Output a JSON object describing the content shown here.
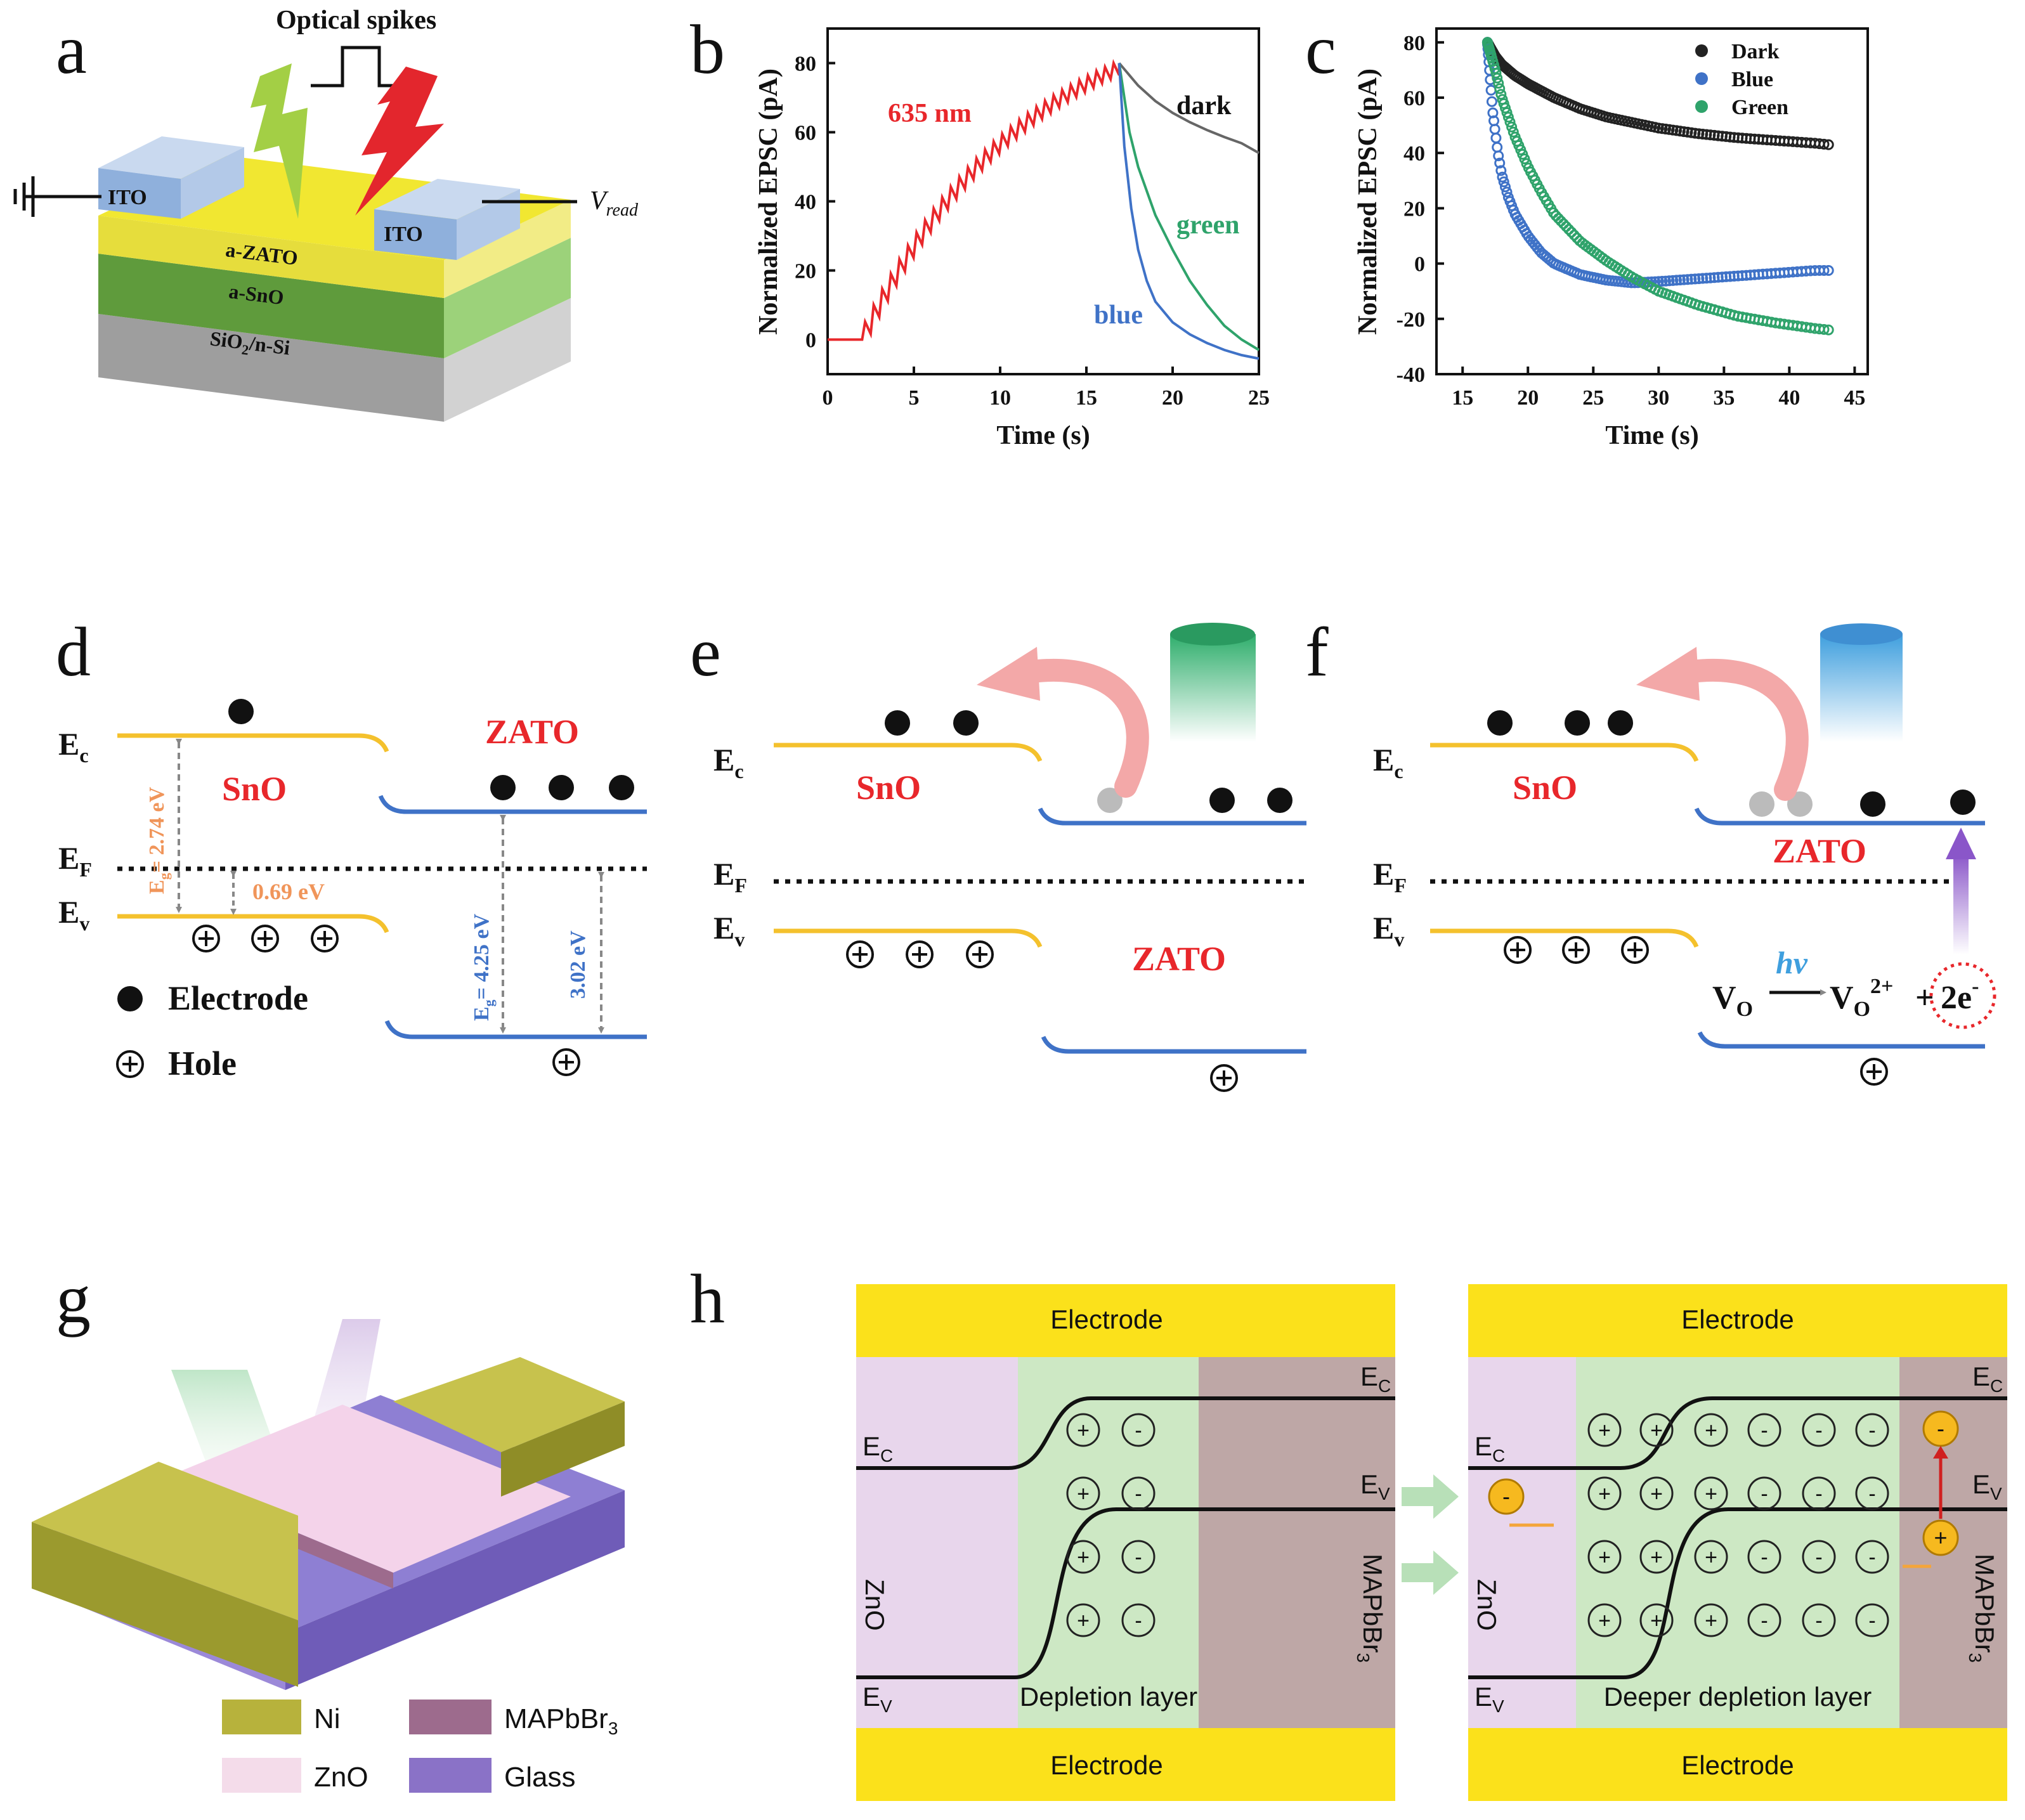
{
  "panel_labels": {
    "a": "a",
    "b": "b",
    "c": "c",
    "d": "d",
    "e": "e",
    "f": "f",
    "g": "g",
    "h": "h"
  },
  "colors": {
    "red": "#e8272b",
    "blue": "#3f72c7",
    "green": "#2fa36b",
    "black": "#222222",
    "gold": "#f4c12d",
    "band_blue": "#3f72c7",
    "ito": "#a9c3e6",
    "zato": "#eae24a",
    "sno": "#6aa546",
    "sio2": "#9a9a9a",
    "electrode_yellow": "#fbe11b",
    "zno_bg": "#e8d6ec",
    "depletion_bg": "#cde8c4",
    "mapbbr_bg": "#bea7a6",
    "ni": "#b7b23c",
    "glass": "#8a72c7",
    "zno_legend": "#f4dcea"
  },
  "panel_a": {
    "optical_spikes": "Optical spikes",
    "ito_left": "ITO",
    "ito_right": "ITO",
    "v_read": "V",
    "v_read_sub": "read",
    "layer_zato": "a-ZATO",
    "layer_sno": "a-SnO",
    "layer_substrate": "SiO",
    "layer_substrate_sub": "2",
    "layer_substrate_rest": "/n-Si",
    "icons": [
      "ground-icon",
      "green-lightning-icon",
      "red-lightning-icon",
      "pulse-icon"
    ]
  },
  "chart_data": [
    {
      "type": "line",
      "panel": "b",
      "xlabel": "Time (s)",
      "ylabel": "Normalized EPSC (pA)",
      "xlim": [
        0,
        25
      ],
      "ylim": [
        -10,
        90
      ],
      "xticks": [
        0,
        5,
        10,
        15,
        20,
        25
      ],
      "yticks": [
        0,
        20,
        40,
        60,
        80
      ],
      "annotations": [
        "635 nm",
        "dark",
        "green",
        "blue"
      ],
      "series": [
        {
          "name": "635 nm",
          "color": "#e8272b",
          "stimulus": "pulsed",
          "start": 2.0,
          "end": 16.9,
          "pulses": 30,
          "peak": 80,
          "rise_tau": 9.5
        },
        {
          "name": "dark",
          "color": "#666666",
          "x": [
            16.9,
            18,
            19,
            20,
            21,
            22,
            23,
            24,
            25
          ],
          "y": [
            80,
            73.5,
            69.0,
            65.6,
            62.9,
            60.6,
            58.6,
            56.8,
            54.0
          ]
        },
        {
          "name": "green",
          "color": "#2fa36b",
          "x": [
            16.9,
            17.5,
            18,
            19,
            20,
            21,
            22,
            23,
            24,
            25
          ],
          "y": [
            80,
            60,
            50,
            36,
            26,
            17,
            10,
            4,
            0,
            -3
          ]
        },
        {
          "name": "blue",
          "color": "#3f72c7",
          "x": [
            16.9,
            17.2,
            17.6,
            18,
            18.5,
            19,
            20,
            21,
            22,
            23,
            24,
            25
          ],
          "y": [
            80,
            56,
            38,
            26,
            17,
            11,
            5,
            1.5,
            -1,
            -3,
            -4.5,
            -5.5
          ]
        }
      ]
    },
    {
      "type": "scatter",
      "panel": "c",
      "xlabel": "Time (s)",
      "ylabel": "Normalized EPSC (pA)",
      "xlim": [
        13,
        46
      ],
      "ylim": [
        -40,
        85
      ],
      "xticks": [
        15,
        20,
        25,
        30,
        35,
        40,
        45
      ],
      "yticks": [
        -40,
        -20,
        0,
        20,
        40,
        60,
        80
      ],
      "legend_position": "top-right",
      "legend": [
        "Dark",
        "Blue",
        "Green"
      ],
      "series": [
        {
          "name": "Dark",
          "color": "#222222",
          "x": [
            16.9,
            17.5,
            18,
            19,
            20,
            22,
            24,
            26,
            28,
            30,
            33,
            36,
            39,
            42,
            43
          ],
          "y": [
            80,
            75,
            72,
            68,
            65,
            60,
            56,
            53,
            51,
            49,
            47,
            45.5,
            44.5,
            43.5,
            43
          ]
        },
        {
          "name": "Blue",
          "color": "#3f72c7",
          "x": [
            16.9,
            17.3,
            17.7,
            18,
            18.5,
            19,
            20,
            21,
            22,
            24,
            26,
            28,
            30,
            33,
            36,
            39,
            42,
            43
          ],
          "y": [
            80,
            55,
            40,
            32,
            24,
            18,
            10,
            4,
            0,
            -4,
            -6,
            -7,
            -6.5,
            -5.5,
            -4.5,
            -3.5,
            -2.5,
            -2.5
          ]
        },
        {
          "name": "Green",
          "color": "#2fa36b",
          "x": [
            16.9,
            17.5,
            18,
            19,
            20,
            21,
            22,
            24,
            26,
            28,
            30,
            33,
            36,
            39,
            42,
            43
          ],
          "y": [
            80,
            70,
            60,
            46,
            35,
            26,
            18,
            8,
            1,
            -5,
            -10,
            -15,
            -19,
            -21.5,
            -23.5,
            -24
          ]
        }
      ]
    }
  ],
  "panel_d": {
    "ec": "E",
    "ec_sub": "c",
    "ef": "E",
    "ef_sub": "F",
    "ev": "E",
    "ev_sub": "v",
    "sno": "SnO",
    "zato": "ZATO",
    "eg_sno": "E",
    "eg_sno_sub": "g",
    "eg_sno_value": "= 2.74 eV",
    "offset": "0.69 eV",
    "eg_zato": "E",
    "eg_zato_sub": "g",
    "eg_zato_value": "= 4.25 eV",
    "zato_offset": "3.02 eV",
    "legend_electrode": "Electrode",
    "legend_hole": "Hole"
  },
  "panel_e": {
    "ec": "E",
    "ec_sub": "c",
    "ef": "E",
    "ef_sub": "F",
    "ev": "E",
    "ev_sub": "v",
    "sno": "SnO",
    "zato": "ZATO"
  },
  "panel_f": {
    "ec": "E",
    "ec_sub": "c",
    "ef": "E",
    "ef_sub": "F",
    "ev": "E",
    "ev_sub": "v",
    "sno": "SnO",
    "zato": "ZATO",
    "hv": "hv",
    "vo": "V",
    "vo_sub": "O",
    "vo2": "V",
    "vo2_sub": "O",
    "vo2_sup": "2+",
    "plus": "+",
    "electrons": "2e",
    "electrons_sup": "-"
  },
  "panel_g": {
    "legend": [
      {
        "label": "Ni"
      },
      {
        "label": "MAPbBr",
        "sub": "3"
      },
      {
        "label": "ZnO"
      },
      {
        "label": "Glass"
      }
    ]
  },
  "panel_h": {
    "left": {
      "electrode_top": "Electrode",
      "electrode_bottom": "Electrode",
      "ec_left": "E",
      "ec_left_sub": "C",
      "ev_left": "E",
      "ev_left_sub": "V",
      "ec_right": "E",
      "ec_right_sub": "C",
      "ev_right": "E",
      "ev_right_sub": "V",
      "zno": "ZnO",
      "mapbbr": "MAPbBr",
      "mapbbr_sub": "3",
      "depletion": "Depletion layer",
      "plus": "+",
      "minus": "-"
    },
    "right": {
      "electrode_top": "Electrode",
      "electrode_bottom": "Electrode",
      "ec_left": "E",
      "ec_left_sub": "C",
      "ev_left": "E",
      "ev_left_sub": "V",
      "ec_right": "E",
      "ec_right_sub": "C",
      "ev_right": "E",
      "ev_right_sub": "V",
      "zno": "ZnO",
      "mapbbr": "MAPbBr",
      "mapbbr_sub": "3",
      "depletion": "Deeper depletion layer",
      "plus": "+",
      "minus": "-"
    }
  }
}
